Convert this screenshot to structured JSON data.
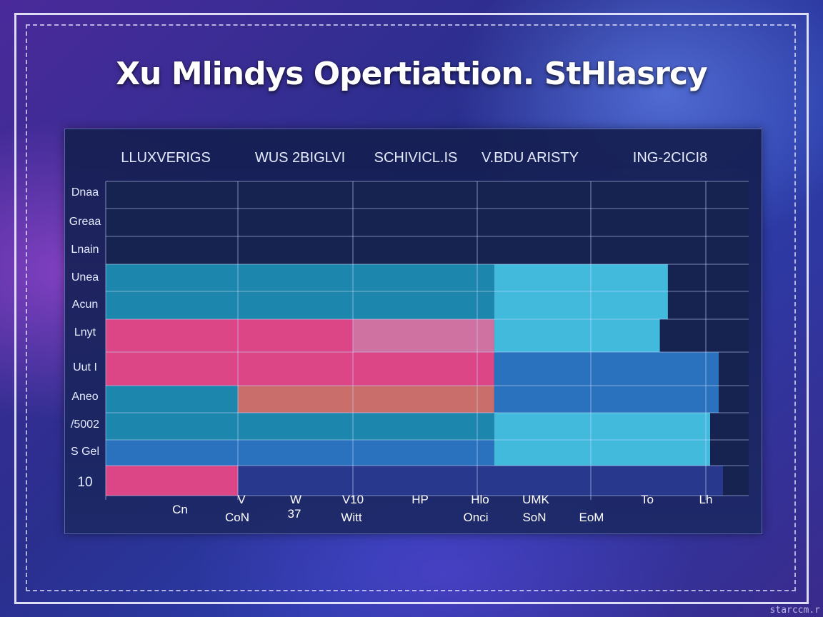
{
  "title": "Xu Mlindys Opertiattion. StHlasrcy",
  "watermark": "starccm.r",
  "chart_data": {
    "type": "heatmap",
    "title": "Xu Mlindys Opertiattion. StHlasrcy",
    "columns": [
      "LLUXVERIGS",
      "WUS 2BIGLVI",
      "SCHIVICL.IS",
      "V.BDU ARISTY",
      "ING-2CICI8"
    ],
    "rows": [
      "Dnaa",
      "Greaa",
      "Lnain",
      "Unea",
      "Acun",
      "Lnyt",
      "Uut I",
      "Aneo",
      "/5002",
      "S Gel",
      "10"
    ],
    "x_tick_labels": [
      "Cn",
      "V",
      "W",
      "V10",
      "HP",
      "Hlo",
      "UMK",
      "",
      "To",
      "Lh"
    ],
    "x_tick_labels_2": [
      "CoN",
      "",
      "37",
      "Witt",
      "",
      "Onci",
      "SoN",
      "EoM",
      "",
      ""
    ],
    "cells": [
      {
        "row": 3,
        "from_col": 0,
        "to_col": 3.15,
        "tone": "teal"
      },
      {
        "row": 3,
        "from_col": 3.15,
        "to_col": 4.67,
        "tone": "cyan"
      },
      {
        "row": 4,
        "from_col": 0,
        "to_col": 3.15,
        "tone": "teal"
      },
      {
        "row": 4,
        "from_col": 3.15,
        "to_col": 4.67,
        "tone": "cyan"
      },
      {
        "row": 5,
        "from_col": 0,
        "to_col": 2.0,
        "tone": "pink"
      },
      {
        "row": 5,
        "from_col": 2.0,
        "to_col": 3.15,
        "tone": "rose"
      },
      {
        "row": 5,
        "from_col": 3.15,
        "to_col": 4.6,
        "tone": "cyan"
      },
      {
        "row": 6,
        "from_col": 0,
        "to_col": 3.15,
        "tone": "pink"
      },
      {
        "row": 6,
        "from_col": 3.15,
        "to_col": 5.3,
        "tone": "blue"
      },
      {
        "row": 7,
        "from_col": 0,
        "to_col": 1.0,
        "tone": "teal"
      },
      {
        "row": 7,
        "from_col": 1.0,
        "to_col": 3.15,
        "tone": "salmon"
      },
      {
        "row": 7,
        "from_col": 3.15,
        "to_col": 5.3,
        "tone": "blue"
      },
      {
        "row": 8,
        "from_col": 0,
        "to_col": 3.15,
        "tone": "teal"
      },
      {
        "row": 8,
        "from_col": 3.15,
        "to_col": 5.1,
        "tone": "cyan"
      },
      {
        "row": 9,
        "from_col": 0,
        "to_col": 3.15,
        "tone": "blue"
      },
      {
        "row": 9,
        "from_col": 3.15,
        "to_col": 5.1,
        "tone": "cyan"
      },
      {
        "row": 10,
        "from_col": 0,
        "to_col": 1.0,
        "tone": "pink"
      },
      {
        "row": 10,
        "from_col": 1.0,
        "to_col": 5.4,
        "tone": "navy"
      }
    ],
    "tones": {
      "teal": "#1e8fb4",
      "cyan": "#46c8e8",
      "pink": "#ee4a8c",
      "rose": "#e07aa8",
      "salmon": "#d9756e",
      "blue": "#2d79c8",
      "navy": "#2a3c92"
    },
    "grid": true
  }
}
